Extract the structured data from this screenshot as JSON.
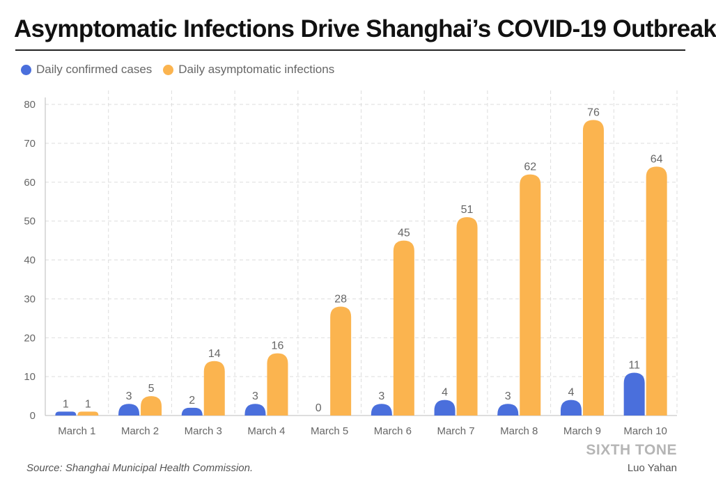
{
  "title": "Asymptomatic Infections Drive Shanghai’s COVID-19 Outbreak",
  "source": "Source: Shanghai Municipal Health Commission.",
  "brand": "SIXTH TONE",
  "author": "Luo Yahan",
  "colors": {
    "confirmed": "#4a6fdc",
    "asymptomatic": "#fbb44f",
    "grid": "#dddddd",
    "axis": "#bbbbbb",
    "text": "#666666"
  },
  "chart_data": {
    "type": "bar",
    "categories": [
      "March 1",
      "March 2",
      "March 3",
      "March 4",
      "March 5",
      "March 6",
      "March 7",
      "March 8",
      "March 9",
      "March 10"
    ],
    "series": [
      {
        "name": "Daily confirmed cases",
        "color": "#4a6fdc",
        "values": [
          1,
          3,
          2,
          3,
          0,
          3,
          4,
          3,
          4,
          11
        ]
      },
      {
        "name": "Daily asymptomatic infections",
        "color": "#fbb44f",
        "values": [
          1,
          5,
          14,
          16,
          28,
          45,
          51,
          62,
          76,
          64
        ]
      }
    ],
    "ylim": [
      0,
      80
    ],
    "yticks": [
      0,
      10,
      20,
      30,
      40,
      50,
      60,
      70,
      80
    ],
    "grid": true,
    "legend": "top-left",
    "data_labels": true
  }
}
